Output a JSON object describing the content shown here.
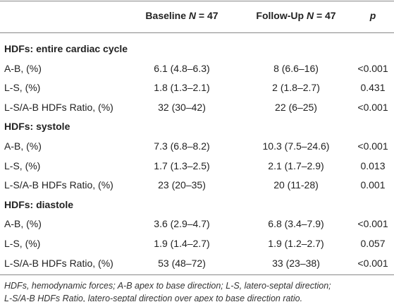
{
  "header": {
    "baseline": {
      "label": "Baseline",
      "n_symbol": "N",
      "n_value": "= 47"
    },
    "followup": {
      "label": "Follow-Up",
      "n_symbol": "N",
      "n_value": "= 47"
    },
    "p": "p"
  },
  "sections": [
    {
      "title": "HDFs: entire cardiac cycle",
      "rows": [
        [
          "A-B, (%)",
          "6.1 (4.8–6.3)",
          "8 (6.6–16)",
          "<0.001"
        ],
        [
          "L-S, (%)",
          "1.8 (1.3–2.1)",
          "2 (1.8–2.7)",
          "0.431"
        ],
        [
          "L-S/A-B HDFs Ratio, (%)",
          "32 (30–42)",
          "22 (6–25)",
          "<0.001"
        ]
      ]
    },
    {
      "title": "HDFs: systole",
      "rows": [
        [
          "A-B, (%)",
          "7.3 (6.8–8.2)",
          "10.3 (7.5–24.6)",
          "<0.001"
        ],
        [
          "L-S, (%)",
          "1.7 (1.3–2.5)",
          "2.1 (1.7–2.9)",
          "0.013"
        ],
        [
          "L-S/A-B HDFs Ratio, (%)",
          "23 (20–35)",
          "20 (11-28)",
          "0.001"
        ]
      ]
    },
    {
      "title": "HDFs: diastole",
      "rows": [
        [
          "A-B, (%)",
          "3.6 (2.9–4.7)",
          "6.8 (3.4–7.9)",
          "<0.001"
        ],
        [
          "L-S, (%)",
          "1.9 (1.4–2.7)",
          "1.9 (1.2–2.7)",
          "0.057"
        ],
        [
          "L-S/A-B HDFs Ratio, (%)",
          "53 (48–72)",
          "33 (23–38)",
          "<0.001"
        ]
      ]
    }
  ],
  "footnote": [
    "HDFs, hemodynamic forces; A-B apex to base direction; L-S, latero-septal direction;",
    "L-S/A-B HDFs Ratio, latero-septal direction over apex to base direction ratio."
  ]
}
